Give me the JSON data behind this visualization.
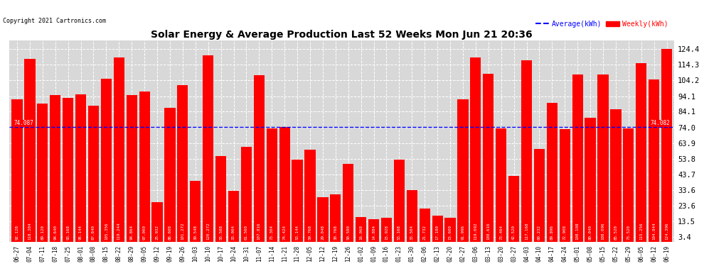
{
  "title": "Solar Energy & Average Production Last 52 Weeks Mon Jun 21 20:36",
  "copyright": "Copyright 2021 Cartronics.com",
  "legend_avg": "Average(kWh)",
  "legend_weekly": "Weekly(kWh)",
  "average_value": 74.082,
  "left_label": "74.087",
  "right_label": "74.082",
  "bar_color": "#ff0000",
  "avg_line_color": "#0000ff",
  "background_color": "#ffffff",
  "plot_bg_color": "#d8d8d8",
  "grid_color": "#ffffff",
  "yticks": [
    3.4,
    13.5,
    23.6,
    33.6,
    43.7,
    53.8,
    63.9,
    74.0,
    84.1,
    94.1,
    104.2,
    114.3,
    124.4
  ],
  "categories": [
    "06-27",
    "07-04",
    "07-11",
    "07-18",
    "07-25",
    "08-01",
    "08-08",
    "08-15",
    "08-22",
    "08-29",
    "09-05",
    "09-12",
    "09-19",
    "09-26",
    "10-03",
    "10-10",
    "10-17",
    "10-24",
    "10-31",
    "11-07",
    "11-14",
    "11-21",
    "11-28",
    "12-05",
    "12-12",
    "12-19",
    "12-26",
    "01-02",
    "01-09",
    "01-16",
    "01-23",
    "01-30",
    "02-06",
    "02-13",
    "02-20",
    "02-27",
    "03-06",
    "03-13",
    "03-20",
    "03-27",
    "04-03",
    "04-10",
    "04-17",
    "04-24",
    "05-01",
    "05-08",
    "05-15",
    "05-22",
    "05-29",
    "06-05",
    "06-12",
    "06-19"
  ],
  "values": [
    92.128,
    118.304,
    89.12,
    94.64,
    93.168,
    95.144,
    87.84,
    105.356,
    119.244,
    94.864,
    97.0,
    25.932,
    86.608,
    101.272,
    39.548,
    120.272,
    55.588,
    33.004,
    61.56,
    107.816,
    73.304,
    74.424,
    53.144,
    59.768,
    29.048,
    30.768,
    50.58,
    16.068,
    14.884,
    15.928,
    53.168,
    33.504,
    21.732,
    17.18,
    15.6,
    91.996,
    119.092,
    108.616,
    73.464,
    42.52,
    117.168,
    60.232,
    89.896,
    72.908,
    108.108,
    80.04,
    108.096,
    85.52,
    73.52,
    115.256,
    104.844,
    124.396
  ]
}
